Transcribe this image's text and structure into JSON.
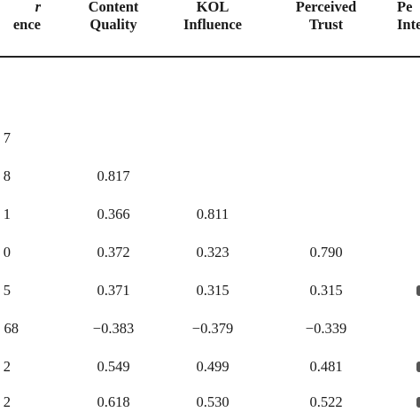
{
  "headers": [
    {
      "line1": "r",
      "line2": "ence"
    },
    {
      "line1": "Content",
      "line2": "Quality"
    },
    {
      "line1": "KOL",
      "line2": "Influence"
    },
    {
      "line1": "Perceived",
      "line2": "Trust"
    },
    {
      "line1": "Pe",
      "line2": "Inte"
    }
  ],
  "rows": [
    {
      "c0": "7",
      "c1": "",
      "c2": "",
      "c3": ""
    },
    {
      "c0": "8",
      "c1": "0.817",
      "c2": "",
      "c3": ""
    },
    {
      "c0": "1",
      "c1": "0.366",
      "c2": "0.811",
      "c3": ""
    },
    {
      "c0": "0",
      "c1": "0.372",
      "c2": "0.323",
      "c3": "0.790"
    },
    {
      "c0": "5",
      "c1": "0.371",
      "c2": "0.315",
      "c3": "0.315"
    },
    {
      "c0": "68",
      "c1": "−0.383",
      "c2": "−0.379",
      "c3": "−0.339"
    },
    {
      "c0": "2",
      "c1": "0.549",
      "c2": "0.499",
      "c3": "0.481"
    },
    {
      "c0": "2",
      "c1": "0.618",
      "c2": "0.530",
      "c3": "0.522"
    }
  ]
}
